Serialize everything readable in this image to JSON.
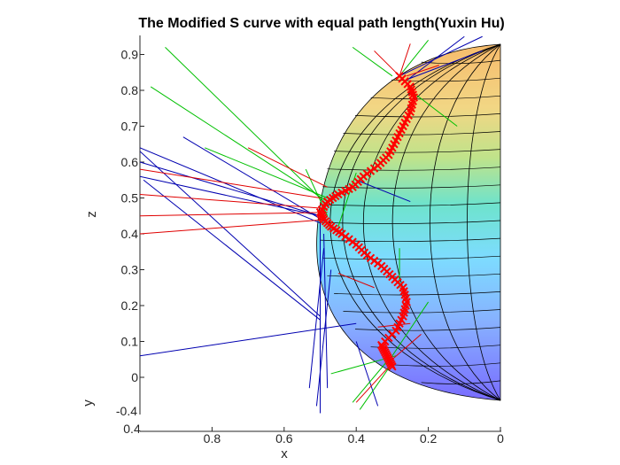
{
  "chart_data": {
    "type": "surface3d",
    "title": "The Modified S curve with equal path length(Yuxin Hu)",
    "xlabel": "x",
    "ylabel": "y",
    "zlabel": "z",
    "x_ticks": [
      "0.8",
      "0.6",
      "0.4",
      "0.2",
      "0"
    ],
    "x_end_label": "0.4",
    "y_tick": "-0.4",
    "z_ticks": [
      "0",
      "0.1",
      "0.2",
      "0.3",
      "0.4",
      "0.5",
      "0.6",
      "0.7",
      "0.8",
      "0.9"
    ],
    "zlim": [
      -0.1,
      0.95
    ],
    "xlim": [
      1.0,
      0.0
    ],
    "sphere": {
      "colormap": "jet",
      "alpha": 0.6,
      "edge_color": "#000000"
    },
    "s_curve": {
      "color": "#ff0000",
      "marker": "x",
      "points": [
        {
          "x": 0.3,
          "z": 0.03
        },
        {
          "x": 0.31,
          "z": 0.05
        },
        {
          "x": 0.32,
          "z": 0.07
        },
        {
          "x": 0.33,
          "z": 0.09
        },
        {
          "x": 0.29,
          "z": 0.13
        },
        {
          "x": 0.27,
          "z": 0.17
        },
        {
          "x": 0.26,
          "z": 0.21
        },
        {
          "x": 0.27,
          "z": 0.25
        },
        {
          "x": 0.3,
          "z": 0.28
        },
        {
          "x": 0.33,
          "z": 0.31
        },
        {
          "x": 0.37,
          "z": 0.34
        },
        {
          "x": 0.4,
          "z": 0.37
        },
        {
          "x": 0.44,
          "z": 0.4
        },
        {
          "x": 0.47,
          "z": 0.42
        },
        {
          "x": 0.49,
          "z": 0.44
        },
        {
          "x": 0.5,
          "z": 0.46
        },
        {
          "x": 0.48,
          "z": 0.49
        },
        {
          "x": 0.45,
          "z": 0.51
        },
        {
          "x": 0.41,
          "z": 0.53
        },
        {
          "x": 0.38,
          "z": 0.56
        },
        {
          "x": 0.34,
          "z": 0.59
        },
        {
          "x": 0.31,
          "z": 0.62
        },
        {
          "x": 0.29,
          "z": 0.66
        },
        {
          "x": 0.27,
          "z": 0.7
        },
        {
          "x": 0.25,
          "z": 0.74
        },
        {
          "x": 0.24,
          "z": 0.78
        },
        {
          "x": 0.25,
          "z": 0.81
        },
        {
          "x": 0.28,
          "z": 0.84
        }
      ]
    },
    "normal_lines": {
      "red": [
        {
          "x1": 0.48,
          "z1": 0.46,
          "x2": 1.0,
          "z2": 0.45
        },
        {
          "x1": 0.48,
          "z1": 0.44,
          "x2": 1.0,
          "z2": 0.4
        },
        {
          "x1": 0.48,
          "z1": 0.47,
          "x2": 1.0,
          "z2": 0.51
        },
        {
          "x1": 0.5,
          "z1": 0.5,
          "x2": 1.0,
          "z2": 0.58
        },
        {
          "x1": 0.48,
          "z1": 0.53,
          "x2": 0.7,
          "z2": 0.64
        },
        {
          "x1": 0.28,
          "z1": 0.84,
          "x2": 0.35,
          "z2": 0.91
        },
        {
          "x1": 0.28,
          "z1": 0.84,
          "x2": 0.25,
          "z2": 0.93
        },
        {
          "x1": 0.26,
          "z1": 0.84,
          "x2": 0.17,
          "z2": 0.87
        },
        {
          "x1": 0.3,
          "z1": 0.04,
          "x2": 0.4,
          "z2": -0.07
        },
        {
          "x1": 0.3,
          "z1": 0.05,
          "x2": 0.22,
          "z2": 0.12
        },
        {
          "x1": 0.35,
          "z1": 0.25,
          "x2": 0.45,
          "z2": 0.29
        },
        {
          "x1": 0.34,
          "z1": 0.14,
          "x2": 0.25,
          "z2": 0.15
        }
      ],
      "green": [
        {
          "x1": 0.48,
          "z1": 0.48,
          "x2": 0.93,
          "z2": 0.92
        },
        {
          "x1": 0.48,
          "z1": 0.49,
          "x2": 0.97,
          "z2": 0.81
        },
        {
          "x1": 0.48,
          "z1": 0.5,
          "x2": 0.82,
          "z2": 0.64
        },
        {
          "x1": 0.48,
          "z1": 0.45,
          "x2": 0.54,
          "z2": 0.58
        },
        {
          "x1": 0.3,
          "z1": 0.84,
          "x2": 0.41,
          "z2": 0.92
        },
        {
          "x1": 0.28,
          "z1": 0.84,
          "x2": 0.2,
          "z2": 0.94
        },
        {
          "x1": 0.25,
          "z1": 0.8,
          "x2": 0.12,
          "z2": 0.7
        },
        {
          "x1": 0.3,
          "z1": 0.04,
          "x2": 0.39,
          "z2": -0.09
        },
        {
          "x1": 0.31,
          "z1": 0.05,
          "x2": 0.41,
          "z2": -0.07
        },
        {
          "x1": 0.3,
          "z1": 0.06,
          "x2": 0.2,
          "z2": 0.21
        },
        {
          "x1": 0.29,
          "z1": 0.06,
          "x2": 0.47,
          "z2": 0.01
        },
        {
          "x1": 0.28,
          "z1": 0.25,
          "x2": 0.28,
          "z2": 0.36
        },
        {
          "x1": 0.45,
          "z1": 0.42,
          "x2": 0.4,
          "z2": 0.57
        }
      ],
      "blue": [
        {
          "x1": 0.5,
          "z1": 0.45,
          "x2": 1.0,
          "z2": 0.6
        },
        {
          "x1": 0.5,
          "z1": 0.45,
          "x2": 1.0,
          "z2": 0.56
        },
        {
          "x1": 0.48,
          "z1": 0.43,
          "x2": 0.88,
          "z2": 0.67
        },
        {
          "x1": 0.5,
          "z1": 0.43,
          "x2": 1.0,
          "z2": 0.64
        },
        {
          "x1": 0.5,
          "z1": 0.16,
          "x2": 0.99,
          "z2": 0.55
        },
        {
          "x1": 0.5,
          "z1": 0.17,
          "x2": 1.0,
          "z2": 0.63
        },
        {
          "x1": 0.4,
          "z1": 0.15,
          "x2": 1.0,
          "z2": 0.06
        },
        {
          "x1": 0.5,
          "z1": 0.45,
          "x2": 0.5,
          "z2": -0.1
        },
        {
          "x1": 0.49,
          "z1": 0.4,
          "x2": 0.48,
          "z2": -0.03
        },
        {
          "x1": 0.49,
          "z1": 0.36,
          "x2": 0.53,
          "z2": -0.03
        },
        {
          "x1": 0.47,
          "z1": 0.3,
          "x2": 0.51,
          "z2": -0.08
        },
        {
          "x1": 0.4,
          "z1": 0.55,
          "x2": 0.25,
          "z2": 0.49
        },
        {
          "x1": 0.28,
          "z1": 0.84,
          "x2": 0.05,
          "z2": 0.95
        },
        {
          "x1": 0.26,
          "z1": 0.83,
          "x2": 0.05,
          "z2": 0.91
        },
        {
          "x1": 0.27,
          "z1": 0.82,
          "x2": 0.1,
          "z2": 0.95
        },
        {
          "x1": 0.4,
          "z1": 0.1,
          "x2": 0.34,
          "z2": -0.08
        }
      ]
    }
  }
}
